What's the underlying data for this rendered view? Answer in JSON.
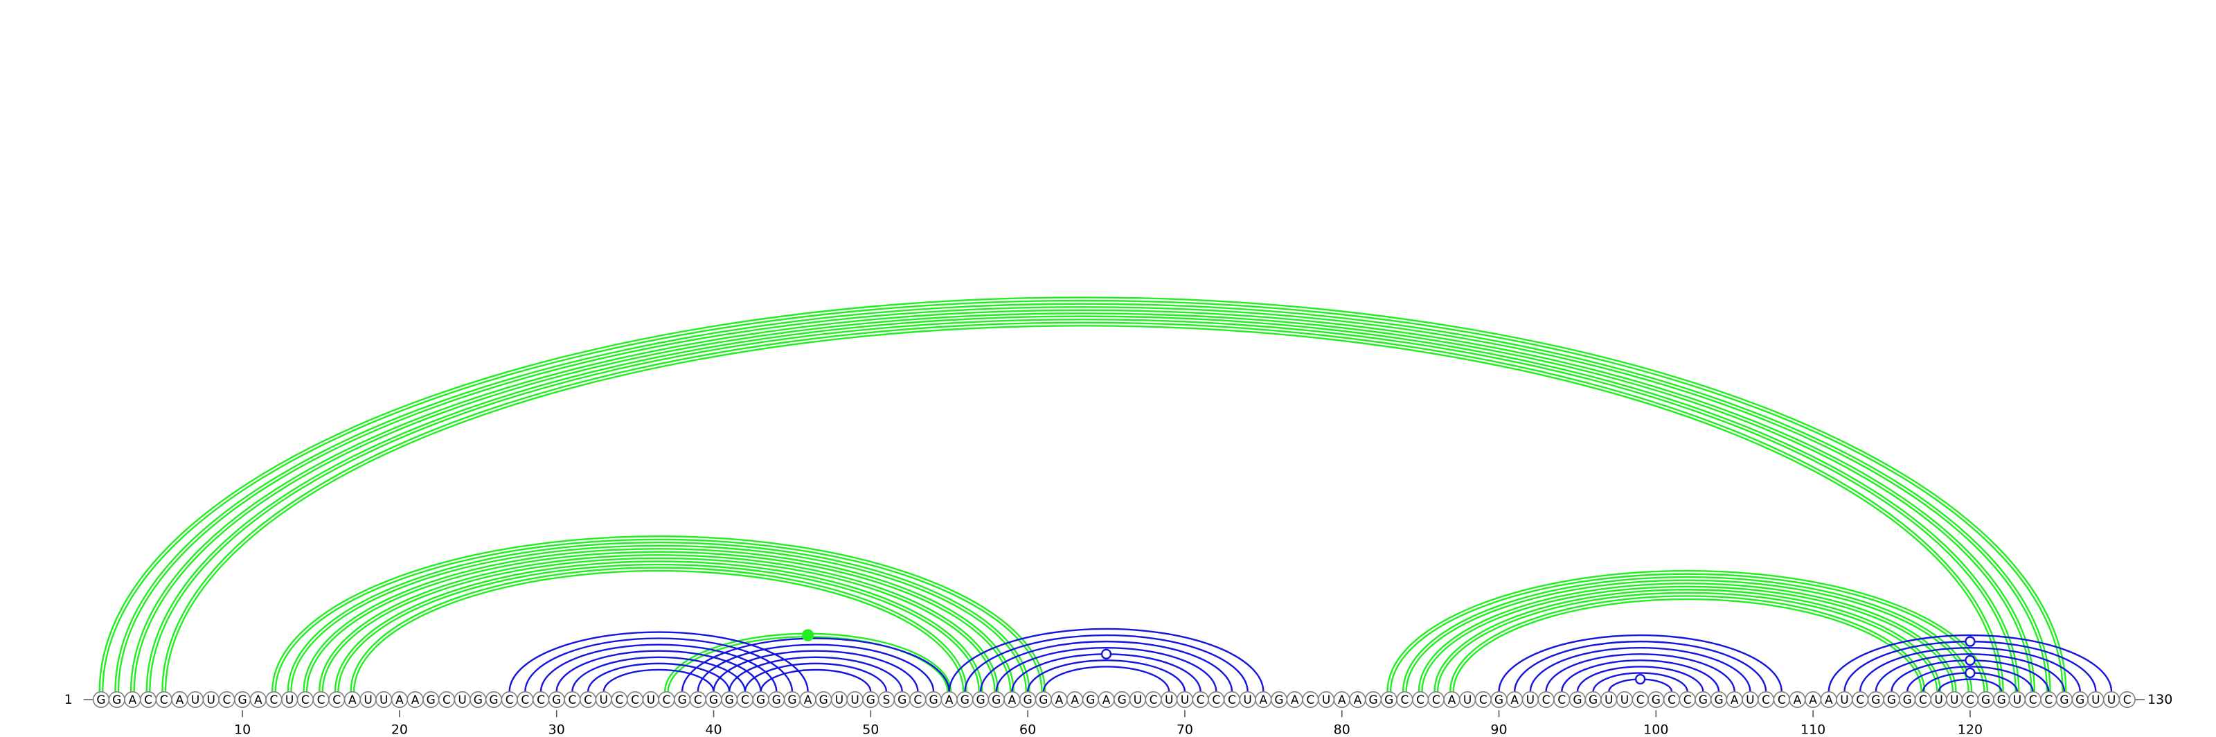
{
  "sequence": "GGACCAUUCGACUCCCAUUAAGCUGGCCCGCCUCCUCGCGGCGGGAGUUGSGCGAGGGAGGAAGAGUCUUCCCUAGACUAAGGCCCAUCGAUCCGGUUCGCCGGAUCCAAAUCGGGCUUCGGUCCGGUUC",
  "start_label": "1",
  "end_label": "130",
  "tick_labels": [
    "10",
    "20",
    "30",
    "40",
    "50",
    "60",
    "70",
    "80",
    "90",
    "100",
    "110",
    "120"
  ],
  "colors": {
    "green_arc": "#22ee22",
    "blue_arc": "#1515dd",
    "backbone": "#808080"
  },
  "chart_data": {
    "type": "arc-diagram",
    "x_range": [
      1,
      130
    ],
    "green_pairs": [
      [
        1,
        126
      ],
      [
        2,
        125
      ],
      [
        3,
        124
      ],
      [
        4,
        123
      ],
      [
        5,
        122
      ],
      [
        12,
        61
      ],
      [
        13,
        60
      ],
      [
        14,
        59
      ],
      [
        15,
        58
      ],
      [
        16,
        57
      ],
      [
        17,
        56
      ],
      [
        37,
        55
      ],
      [
        83,
        121
      ],
      [
        84,
        120
      ],
      [
        85,
        119
      ],
      [
        86,
        118
      ],
      [
        87,
        117
      ]
    ],
    "blue_pairs": [
      [
        27,
        46
      ],
      [
        28,
        45
      ],
      [
        29,
        44
      ],
      [
        30,
        43
      ],
      [
        31,
        42
      ],
      [
        32,
        41
      ],
      [
        33,
        40
      ],
      [
        38,
        55
      ],
      [
        39,
        54
      ],
      [
        40,
        53
      ],
      [
        41,
        52
      ],
      [
        42,
        51
      ],
      [
        43,
        50
      ],
      [
        55,
        75
      ],
      [
        56,
        74
      ],
      [
        57,
        73
      ],
      [
        58,
        72
      ],
      [
        59,
        71
      ],
      [
        60,
        70
      ],
      [
        61,
        69
      ],
      [
        90,
        108
      ],
      [
        91,
        107
      ],
      [
        92,
        106
      ],
      [
        93,
        105
      ],
      [
        94,
        104
      ],
      [
        95,
        103
      ],
      [
        96,
        102
      ],
      [
        97,
        101
      ],
      [
        111,
        129
      ],
      [
        112,
        128
      ],
      [
        113,
        127
      ],
      [
        114,
        126
      ],
      [
        115,
        125
      ],
      [
        116,
        124
      ],
      [
        117,
        123
      ],
      [
        118,
        122
      ]
    ],
    "markers": [
      {
        "pos": [
          37,
          55
        ],
        "kind": "filled",
        "color": "green"
      },
      {
        "pos": [
          59,
          71
        ],
        "kind": "open",
        "color": "blue"
      },
      {
        "pos": [
          97,
          101
        ],
        "kind": "open",
        "color": "blue"
      },
      {
        "pos": [
          112,
          128
        ],
        "kind": "open",
        "color": "blue"
      },
      {
        "pos": [
          115,
          125
        ],
        "kind": "open",
        "color": "blue"
      },
      {
        "pos": [
          117,
          123
        ],
        "kind": "open",
        "color": "blue"
      }
    ]
  }
}
